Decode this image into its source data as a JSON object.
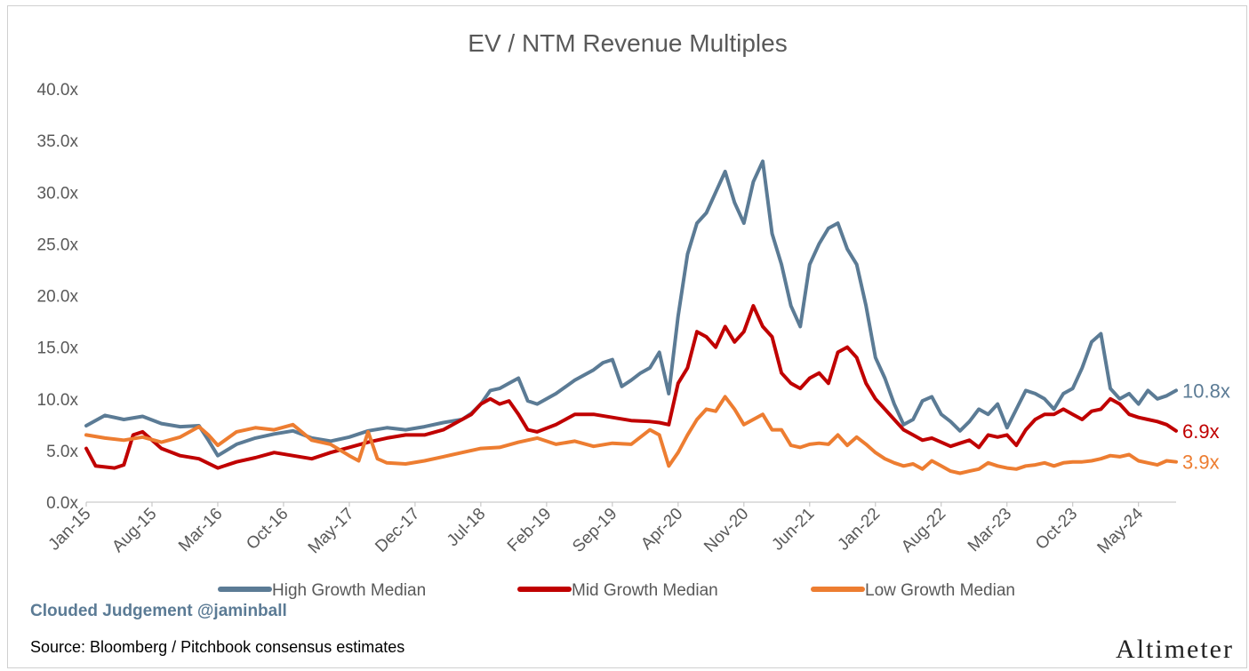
{
  "chart_data": {
    "type": "line",
    "title": "EV / NTM Revenue Multiples",
    "xlabel": "",
    "ylabel": "",
    "x_ticks": [
      "Jan-15",
      "Aug-15",
      "Mar-16",
      "Oct-16",
      "May-17",
      "Dec-17",
      "Jul-18",
      "Feb-19",
      "Sep-19",
      "Apr-20",
      "Nov-20",
      "Jun-21",
      "Jan-22",
      "Aug-22",
      "Mar-23",
      "Oct-23",
      "May-24"
    ],
    "y_ticks": [
      "0.0x",
      "5.0x",
      "10.0x",
      "15.0x",
      "20.0x",
      "25.0x",
      "30.0x",
      "35.0x",
      "40.0x"
    ],
    "ylim": [
      0,
      40
    ],
    "x_range": [
      "2015-01",
      "2024-09"
    ],
    "grid": false,
    "legend_position": "bottom",
    "series": [
      {
        "name": "High Growth Median",
        "color": "#5b7b95",
        "end_label": "10.8x",
        "x": [
          "2015-01",
          "2015-03",
          "2015-05",
          "2015-07",
          "2015-09",
          "2015-11",
          "2016-01",
          "2016-02",
          "2016-03",
          "2016-05",
          "2016-07",
          "2016-09",
          "2016-11",
          "2017-01",
          "2017-03",
          "2017-05",
          "2017-07",
          "2017-09",
          "2017-11",
          "2018-01",
          "2018-03",
          "2018-05",
          "2018-06",
          "2018-07",
          "2018-08",
          "2018-09",
          "2018-10",
          "2018-11",
          "2018-12",
          "2019-01",
          "2019-03",
          "2019-05",
          "2019-07",
          "2019-08",
          "2019-09",
          "2019-10",
          "2019-11",
          "2019-12",
          "2020-01",
          "2020-02",
          "2020-03",
          "2020-04",
          "2020-05",
          "2020-06",
          "2020-07",
          "2020-08",
          "2020-09",
          "2020-10",
          "2020-11",
          "2020-12",
          "2021-01",
          "2021-02",
          "2021-03",
          "2021-04",
          "2021-05",
          "2021-06",
          "2021-07",
          "2021-08",
          "2021-09",
          "2021-10",
          "2021-11",
          "2021-12",
          "2022-01",
          "2022-02",
          "2022-03",
          "2022-04",
          "2022-05",
          "2022-06",
          "2022-07",
          "2022-08",
          "2022-09",
          "2022-10",
          "2022-11",
          "2022-12",
          "2023-01",
          "2023-02",
          "2023-03",
          "2023-04",
          "2023-05",
          "2023-06",
          "2023-07",
          "2023-08",
          "2023-09",
          "2023-10",
          "2023-11",
          "2023-12",
          "2024-01",
          "2024-02",
          "2024-03",
          "2024-04",
          "2024-05",
          "2024-06",
          "2024-07",
          "2024-08",
          "2024-09"
        ],
        "y": [
          7.4,
          8.4,
          8.0,
          8.3,
          7.6,
          7.3,
          7.4,
          6.0,
          4.5,
          5.6,
          6.2,
          6.6,
          6.9,
          6.2,
          5.9,
          6.3,
          6.9,
          7.2,
          7.0,
          7.3,
          7.7,
          8.0,
          8.6,
          9.5,
          10.8,
          11.0,
          11.5,
          12.0,
          9.8,
          9.5,
          10.5,
          11.8,
          12.8,
          13.5,
          13.8,
          11.2,
          11.8,
          12.5,
          13.0,
          14.5,
          10.5,
          18.0,
          24.0,
          27.0,
          28.0,
          30.0,
          32.0,
          29.0,
          27.0,
          31.0,
          33.0,
          26.0,
          23.0,
          19.0,
          17.0,
          23.0,
          25.0,
          26.5,
          27.0,
          24.5,
          23.0,
          19.0,
          14.0,
          12.0,
          9.5,
          7.5,
          8.0,
          9.8,
          10.2,
          8.5,
          7.8,
          6.9,
          7.8,
          9.0,
          8.5,
          9.5,
          7.2,
          9.0,
          10.8,
          10.5,
          10.0,
          9.0,
          10.5,
          11.0,
          13.0,
          15.5,
          16.3,
          11.0,
          10.0,
          10.5,
          9.5,
          10.8,
          10.0,
          10.3,
          10.8
        ]
      },
      {
        "name": "Mid Growth Median",
        "color": "#c00000",
        "end_label": "6.9x",
        "x": [
          "2015-01",
          "2015-02",
          "2015-04",
          "2015-05",
          "2015-06",
          "2015-07",
          "2015-09",
          "2015-11",
          "2016-01",
          "2016-03",
          "2016-05",
          "2016-07",
          "2016-09",
          "2016-11",
          "2017-01",
          "2017-03",
          "2017-05",
          "2017-07",
          "2017-09",
          "2017-11",
          "2018-01",
          "2018-03",
          "2018-05",
          "2018-06",
          "2018-07",
          "2018-08",
          "2018-09",
          "2018-10",
          "2018-11",
          "2018-12",
          "2019-01",
          "2019-03",
          "2019-05",
          "2019-07",
          "2019-09",
          "2019-11",
          "2020-01",
          "2020-02",
          "2020-03",
          "2020-04",
          "2020-05",
          "2020-06",
          "2020-07",
          "2020-08",
          "2020-09",
          "2020-10",
          "2020-11",
          "2020-12",
          "2021-01",
          "2021-02",
          "2021-03",
          "2021-04",
          "2021-05",
          "2021-06",
          "2021-07",
          "2021-08",
          "2021-09",
          "2021-10",
          "2021-11",
          "2021-12",
          "2022-01",
          "2022-02",
          "2022-03",
          "2022-04",
          "2022-05",
          "2022-06",
          "2022-07",
          "2022-08",
          "2022-09",
          "2022-10",
          "2022-11",
          "2022-12",
          "2023-01",
          "2023-02",
          "2023-03",
          "2023-04",
          "2023-05",
          "2023-06",
          "2023-07",
          "2023-08",
          "2023-09",
          "2023-10",
          "2023-11",
          "2023-12",
          "2024-01",
          "2024-02",
          "2024-03",
          "2024-04",
          "2024-05",
          "2024-06",
          "2024-07",
          "2024-08",
          "2024-09"
        ],
        "y": [
          5.2,
          3.5,
          3.3,
          3.6,
          6.5,
          6.8,
          5.2,
          4.5,
          4.2,
          3.3,
          3.9,
          4.3,
          4.8,
          4.5,
          4.2,
          4.8,
          5.3,
          5.8,
          6.2,
          6.5,
          6.5,
          7.0,
          8.0,
          8.5,
          9.5,
          10.0,
          9.5,
          9.8,
          8.5,
          7.0,
          6.8,
          7.5,
          8.5,
          8.5,
          8.2,
          7.9,
          7.8,
          7.7,
          7.5,
          11.5,
          13.0,
          16.5,
          16.0,
          15.0,
          17.0,
          15.5,
          16.5,
          19.0,
          17.0,
          16.0,
          12.5,
          11.5,
          11.0,
          12.0,
          12.5,
          11.5,
          14.5,
          15.0,
          14.0,
          11.5,
          10.0,
          9.0,
          8.0,
          7.0,
          6.5,
          6.0,
          6.2,
          5.8,
          5.4,
          5.7,
          6.0,
          5.3,
          6.5,
          6.3,
          6.5,
          5.5,
          7.0,
          8.0,
          8.5,
          8.5,
          9.0,
          8.5,
          8.0,
          8.8,
          9.0,
          10.0,
          9.5,
          8.5,
          8.2,
          8.0,
          7.8,
          7.5,
          6.9
        ]
      },
      {
        "name": "Low Growth Median",
        "color": "#ed7d31",
        "end_label": "3.9x",
        "x": [
          "2015-01",
          "2015-03",
          "2015-05",
          "2015-07",
          "2015-09",
          "2015-11",
          "2016-01",
          "2016-02",
          "2016-03",
          "2016-05",
          "2016-07",
          "2016-09",
          "2016-11",
          "2017-01",
          "2017-03",
          "2017-05",
          "2017-06",
          "2017-07",
          "2017-08",
          "2017-09",
          "2017-11",
          "2018-01",
          "2018-03",
          "2018-05",
          "2018-07",
          "2018-09",
          "2018-11",
          "2019-01",
          "2019-03",
          "2019-05",
          "2019-07",
          "2019-09",
          "2019-11",
          "2020-01",
          "2020-02",
          "2020-03",
          "2020-04",
          "2020-05",
          "2020-06",
          "2020-07",
          "2020-08",
          "2020-09",
          "2020-10",
          "2020-11",
          "2020-12",
          "2021-01",
          "2021-02",
          "2021-03",
          "2021-04",
          "2021-05",
          "2021-06",
          "2021-07",
          "2021-08",
          "2021-09",
          "2021-10",
          "2021-11",
          "2021-12",
          "2022-01",
          "2022-02",
          "2022-03",
          "2022-04",
          "2022-05",
          "2022-06",
          "2022-07",
          "2022-08",
          "2022-09",
          "2022-10",
          "2022-11",
          "2022-12",
          "2023-01",
          "2023-02",
          "2023-03",
          "2023-04",
          "2023-05",
          "2023-06",
          "2023-07",
          "2023-08",
          "2023-09",
          "2023-10",
          "2023-11",
          "2023-12",
          "2024-01",
          "2024-02",
          "2024-03",
          "2024-04",
          "2024-05",
          "2024-06",
          "2024-07",
          "2024-08",
          "2024-09"
        ],
        "y": [
          6.5,
          6.2,
          6.0,
          6.3,
          5.8,
          6.3,
          7.3,
          6.5,
          5.5,
          6.8,
          7.2,
          7.0,
          7.5,
          6.0,
          5.6,
          4.5,
          4.0,
          6.8,
          4.2,
          3.8,
          3.7,
          4.0,
          4.4,
          4.8,
          5.2,
          5.3,
          5.8,
          6.2,
          5.6,
          5.9,
          5.4,
          5.7,
          5.6,
          7.0,
          6.5,
          3.5,
          4.8,
          6.5,
          8.0,
          9.0,
          8.8,
          10.2,
          9.0,
          7.5,
          8.0,
          8.5,
          7.0,
          7.0,
          5.5,
          5.3,
          5.6,
          5.7,
          5.6,
          6.5,
          5.5,
          6.3,
          5.6,
          4.8,
          4.2,
          3.8,
          3.5,
          3.7,
          3.2,
          4.0,
          3.5,
          3.0,
          2.8,
          3.0,
          3.2,
          3.8,
          3.5,
          3.3,
          3.2,
          3.5,
          3.6,
          3.8,
          3.5,
          3.8,
          3.9,
          3.9,
          4.0,
          4.2,
          4.5,
          4.4,
          4.6,
          4.0,
          3.8,
          3.6,
          4.0,
          3.9
        ]
      }
    ]
  },
  "footer": {
    "watermark": "Clouded Judgement @jaminball",
    "source": "Source: Bloomberg / Pitchbook consensus estimates",
    "brand": "Altimeter"
  }
}
